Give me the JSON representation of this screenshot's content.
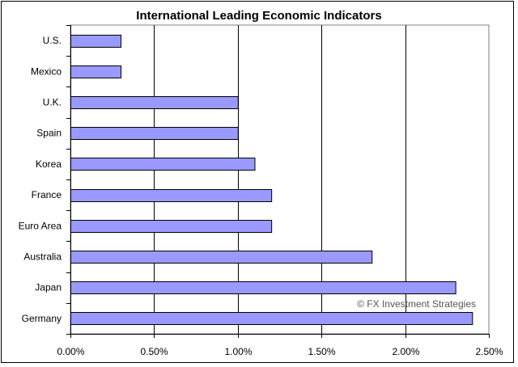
{
  "chart_data": {
    "type": "bar",
    "orientation": "horizontal",
    "title": "International Leading Economic Indicators",
    "categories": [
      "U.S.",
      "Mexico",
      "U.K.",
      "Spain",
      "Korea",
      "France",
      "Euro Area",
      "Australia",
      "Japan",
      "Germany"
    ],
    "values": [
      0.3,
      0.3,
      1.0,
      1.0,
      1.1,
      1.2,
      1.2,
      1.8,
      2.3,
      2.4
    ],
    "unit": "%",
    "xlim": [
      0,
      2.5
    ],
    "x_ticks": [
      "0.00%",
      "0.50%",
      "1.00%",
      "1.50%",
      "2.00%",
      "2.50%"
    ],
    "xlabel": "",
    "ylabel": "",
    "grid": "vertical",
    "legend": "none",
    "bar_color": "#9999ff",
    "annotation": "© FX Investment Strategies"
  }
}
